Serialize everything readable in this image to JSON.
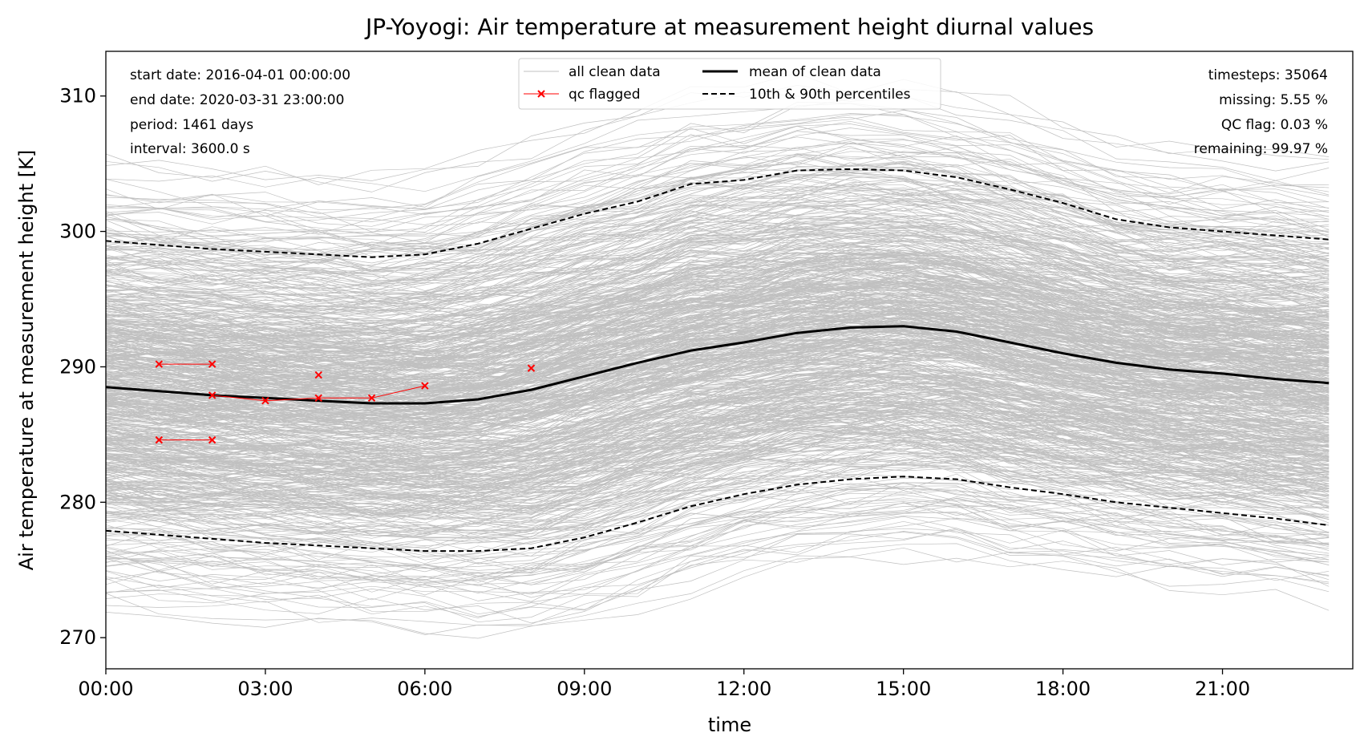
{
  "chart_data": {
    "type": "line",
    "title": "JP-Yoyogi: Air temperature at measurement height diurnal values",
    "xlabel": "time",
    "ylabel": "Air temperature at measurement height [K]",
    "xlim": [
      0,
      23.45
    ],
    "ylim": [
      267.7,
      313.3
    ],
    "x_ticks": [
      0,
      3,
      6,
      9,
      12,
      15,
      18,
      21
    ],
    "x_tick_labels": [
      "00:00",
      "03:00",
      "06:00",
      "09:00",
      "12:00",
      "15:00",
      "18:00",
      "21:00"
    ],
    "y_ticks": [
      270,
      280,
      290,
      300,
      310
    ],
    "y_tick_labels": [
      "270",
      "280",
      "290",
      "300",
      "310"
    ],
    "grid": false,
    "info_left": [
      "start date: 2016-04-01 00:00:00",
      "end date: 2020-03-31 23:00:00",
      "period: 1461 days",
      "interval: 3600.0 s"
    ],
    "info_right": [
      "timesteps: 35064",
      "missing: 5.55 %",
      "QC flag: 0.03 %",
      "remaining: 99.97 %"
    ],
    "legend": {
      "placement": "upper center",
      "entries": [
        {
          "label": "all clean data",
          "style": "thin-gray"
        },
        {
          "label": "qc flagged",
          "style": "red-x"
        },
        {
          "label": "mean of clean data",
          "style": "black-solid"
        },
        {
          "label": "10th & 90th percentiles",
          "style": "black-dashed"
        }
      ]
    },
    "colors": {
      "clean_data": "#c0c0c0",
      "qc_flagged": "#ff0000",
      "mean": "#000000",
      "percentiles": "#000000"
    },
    "hours": [
      0,
      1,
      2,
      3,
      4,
      5,
      6,
      7,
      8,
      9,
      10,
      11,
      12,
      13,
      14,
      15,
      16,
      17,
      18,
      19,
      20,
      21,
      22,
      23
    ],
    "series": [
      {
        "name": "mean of clean data",
        "values": [
          288.5,
          288.2,
          287.9,
          287.7,
          287.5,
          287.3,
          287.3,
          287.6,
          288.3,
          289.3,
          290.3,
          291.2,
          291.8,
          292.5,
          292.9,
          293.0,
          292.6,
          291.8,
          291.0,
          290.3,
          289.8,
          289.5,
          289.1,
          288.8
        ]
      },
      {
        "name": "90th percentile",
        "values": [
          299.3,
          299.0,
          298.7,
          298.5,
          298.3,
          298.1,
          298.3,
          299.1,
          300.2,
          301.3,
          302.2,
          303.5,
          303.8,
          304.5,
          304.6,
          304.5,
          304.0,
          303.1,
          302.1,
          300.9,
          300.3,
          300.0,
          299.7,
          299.4
        ]
      },
      {
        "name": "10th percentile",
        "values": [
          277.9,
          277.6,
          277.3,
          277.0,
          276.8,
          276.6,
          276.4,
          276.4,
          276.6,
          277.4,
          278.5,
          279.7,
          280.6,
          281.3,
          281.7,
          281.9,
          281.7,
          281.1,
          280.6,
          280.0,
          279.6,
          279.2,
          278.8,
          278.3
        ]
      }
    ],
    "qc_flagged": [
      {
        "x": [
          1,
          2
        ],
        "y": [
          290.2,
          290.2
        ]
      },
      {
        "x": [
          1,
          2
        ],
        "y": [
          284.6,
          284.6
        ]
      },
      {
        "x": [
          2,
          3,
          4,
          5,
          6
        ],
        "y": [
          287.9,
          287.5,
          287.7,
          287.7,
          288.6
        ]
      },
      {
        "x": [
          4
        ],
        "y": [
          289.4
        ]
      },
      {
        "x": [
          8
        ],
        "y": [
          289.9
        ]
      }
    ]
  }
}
